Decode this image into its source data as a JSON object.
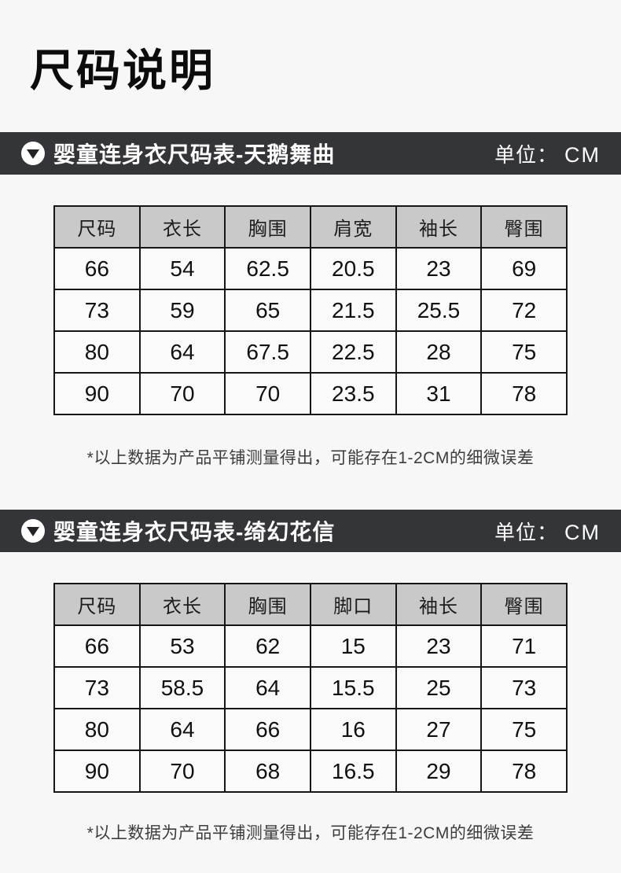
{
  "page": {
    "title": "尺码说明"
  },
  "unit": {
    "label": "单位：",
    "value": "CM"
  },
  "sections": [
    {
      "heading": "婴童连身衣尺码表-天鹅舞曲",
      "marker_icon": "triangle-down-circle-icon",
      "columns": [
        "尺码",
        "衣长",
        "胸围",
        "肩宽",
        "袖长",
        "臀围"
      ],
      "rows": [
        [
          "66",
          "54",
          "62.5",
          "20.5",
          "23",
          "69"
        ],
        [
          "73",
          "59",
          "65",
          "21.5",
          "25.5",
          "72"
        ],
        [
          "80",
          "64",
          "67.5",
          "22.5",
          "28",
          "75"
        ],
        [
          "90",
          "70",
          "70",
          "23.5",
          "31",
          "78"
        ]
      ],
      "note": "*以上数据为产品平铺测量得出，可能存在1-2CM的细微误差"
    },
    {
      "heading": "婴童连身衣尺码表-绮幻花信",
      "marker_icon": "triangle-down-circle-icon",
      "columns": [
        "尺码",
        "衣长",
        "胸围",
        "脚口",
        "袖长",
        "臀围"
      ],
      "rows": [
        [
          "66",
          "53",
          "62",
          "15",
          "23",
          "71"
        ],
        [
          "73",
          "58.5",
          "64",
          "15.5",
          "25",
          "73"
        ],
        [
          "80",
          "64",
          "66",
          "16",
          "27",
          "75"
        ],
        [
          "90",
          "70",
          "68",
          "16.5",
          "29",
          "78"
        ]
      ],
      "note": "*以上数据为产品平铺测量得出，可能存在1-2CM的细微误差"
    }
  ],
  "colors": {
    "page_background": "#f7f7f8",
    "bar_background": "#343539",
    "bar_text": "#ffffff",
    "table_header_background": "#c9c9c9",
    "table_border": "#161616",
    "title_text": "#0c0c0c",
    "note_text": "#3d3d3d"
  }
}
